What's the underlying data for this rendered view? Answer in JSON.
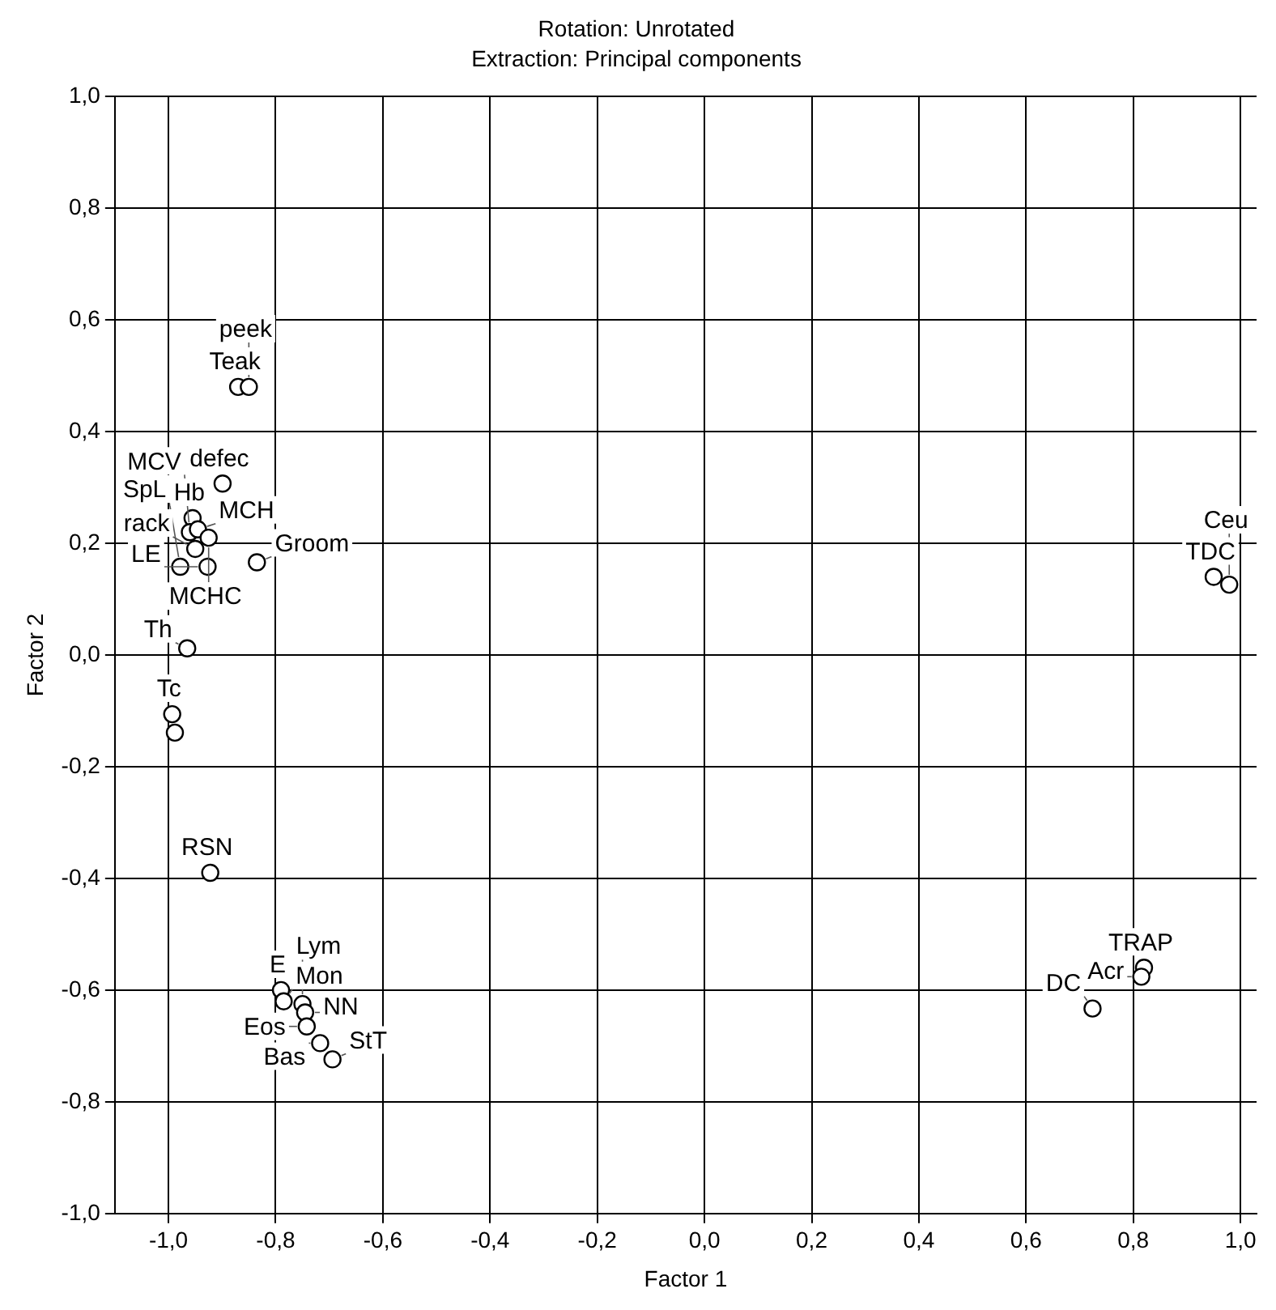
{
  "chart_data": {
    "type": "scatter",
    "title": "Rotation: Unrotated",
    "subtitle": "Extraction: Principal components",
    "xlabel": "Factor 1",
    "ylabel": "Factor 2",
    "x": [
      -0.87,
      -0.85,
      -0.899,
      -0.955,
      -0.96,
      -0.945,
      -0.925,
      -0.95,
      -0.978,
      -0.927,
      -0.835,
      -0.965,
      -0.993,
      -0.988,
      -0.922,
      -0.79,
      -0.785,
      -0.75,
      -0.745,
      -0.742,
      -0.717,
      -0.694,
      0.82,
      0.815,
      0.724,
      0.95,
      0.979
    ],
    "values": [
      0.48,
      0.48,
      0.307,
      0.245,
      0.22,
      0.225,
      0.21,
      0.19,
      0.158,
      0.158,
      0.166,
      0.012,
      -0.106,
      -0.139,
      -0.39,
      -0.6,
      -0.62,
      -0.625,
      -0.64,
      -0.665,
      -0.695,
      -0.724,
      -0.56,
      -0.576,
      -0.633,
      0.14,
      0.126
    ],
    "color": "#000000",
    "marker": "circle",
    "grid": true,
    "xlim": [
      -1.1,
      1.03
    ],
    "ylim": [
      -1,
      1
    ],
    "xticks": [
      {
        "value": -1,
        "label": "-1,0"
      },
      {
        "value": -0.8,
        "label": "-0,8"
      },
      {
        "value": -0.6,
        "label": "-0,6"
      },
      {
        "value": -0.4,
        "label": "-0,4"
      },
      {
        "value": -0.2,
        "label": "-0,2"
      },
      {
        "value": 0,
        "label": "0,0"
      },
      {
        "value": 0.2,
        "label": "0,2"
      },
      {
        "value": 0.4,
        "label": "0,4"
      },
      {
        "value": 0.6,
        "label": "0,6"
      },
      {
        "value": 0.8,
        "label": "0,8"
      },
      {
        "value": 1,
        "label": "1,0"
      }
    ],
    "yticks": [
      {
        "value": -1,
        "label": "-1,0"
      },
      {
        "value": -0.8,
        "label": "-0,8"
      },
      {
        "value": -0.6,
        "label": "-0,6"
      },
      {
        "value": -0.4,
        "label": "-0,4"
      },
      {
        "value": -0.2,
        "label": "-0,2"
      },
      {
        "value": 0,
        "label": "0,0"
      },
      {
        "value": 0.2,
        "label": "0,2"
      },
      {
        "value": 0.4,
        "label": "0,4"
      },
      {
        "value": 0.6,
        "label": "0,6"
      },
      {
        "value": 0.8,
        "label": "0,8"
      },
      {
        "value": 1,
        "label": "1,0"
      }
    ],
    "annotations": [
      {
        "text": "Teak",
        "x": -0.87,
        "y": 0.48
      },
      {
        "text": "peek",
        "x": -0.85,
        "y": 0.48
      },
      {
        "text": "defec",
        "x": -0.899,
        "y": 0.307
      },
      {
        "text": "Hb",
        "x": -0.955,
        "y": 0.245
      },
      {
        "text": "MCV",
        "x": -0.96,
        "y": 0.22
      },
      {
        "text": "MCH",
        "x": -0.945,
        "y": 0.225
      },
      {
        "text": "MCHC",
        "x": -0.925,
        "y": 0.21
      },
      {
        "text": "rack",
        "x": -0.95,
        "y": 0.19
      },
      {
        "text": "SpL",
        "x": -0.978,
        "y": 0.158
      },
      {
        "text": "LE",
        "x": -0.927,
        "y": 0.158
      },
      {
        "text": "Groom",
        "x": -0.835,
        "y": 0.166
      },
      {
        "text": "Th",
        "x": -0.965,
        "y": 0.012
      },
      {
        "text": "Tc",
        "x": -0.993,
        "y": -0.106
      },
      {
        "text": "RSN",
        "x": -0.922,
        "y": -0.39
      },
      {
        "text": "E",
        "x": -0.79,
        "y": -0.6
      },
      {
        "text": "Mon",
        "x": -0.785,
        "y": -0.62
      },
      {
        "text": "Lym",
        "x": -0.75,
        "y": -0.625
      },
      {
        "text": "NN",
        "x": -0.745,
        "y": -0.64
      },
      {
        "text": "Eos",
        "x": -0.742,
        "y": -0.665
      },
      {
        "text": "Bas",
        "x": -0.717,
        "y": -0.695
      },
      {
        "text": "StT",
        "x": -0.694,
        "y": -0.724
      },
      {
        "text": "TRAP",
        "x": 0.82,
        "y": -0.56
      },
      {
        "text": "Acr",
        "x": 0.815,
        "y": -0.576
      },
      {
        "text": "DC",
        "x": 0.724,
        "y": -0.633
      },
      {
        "text": "TDC",
        "x": 0.95,
        "y": 0.14
      },
      {
        "text": "Ceu",
        "x": 0.979,
        "y": 0.126
      }
    ]
  }
}
